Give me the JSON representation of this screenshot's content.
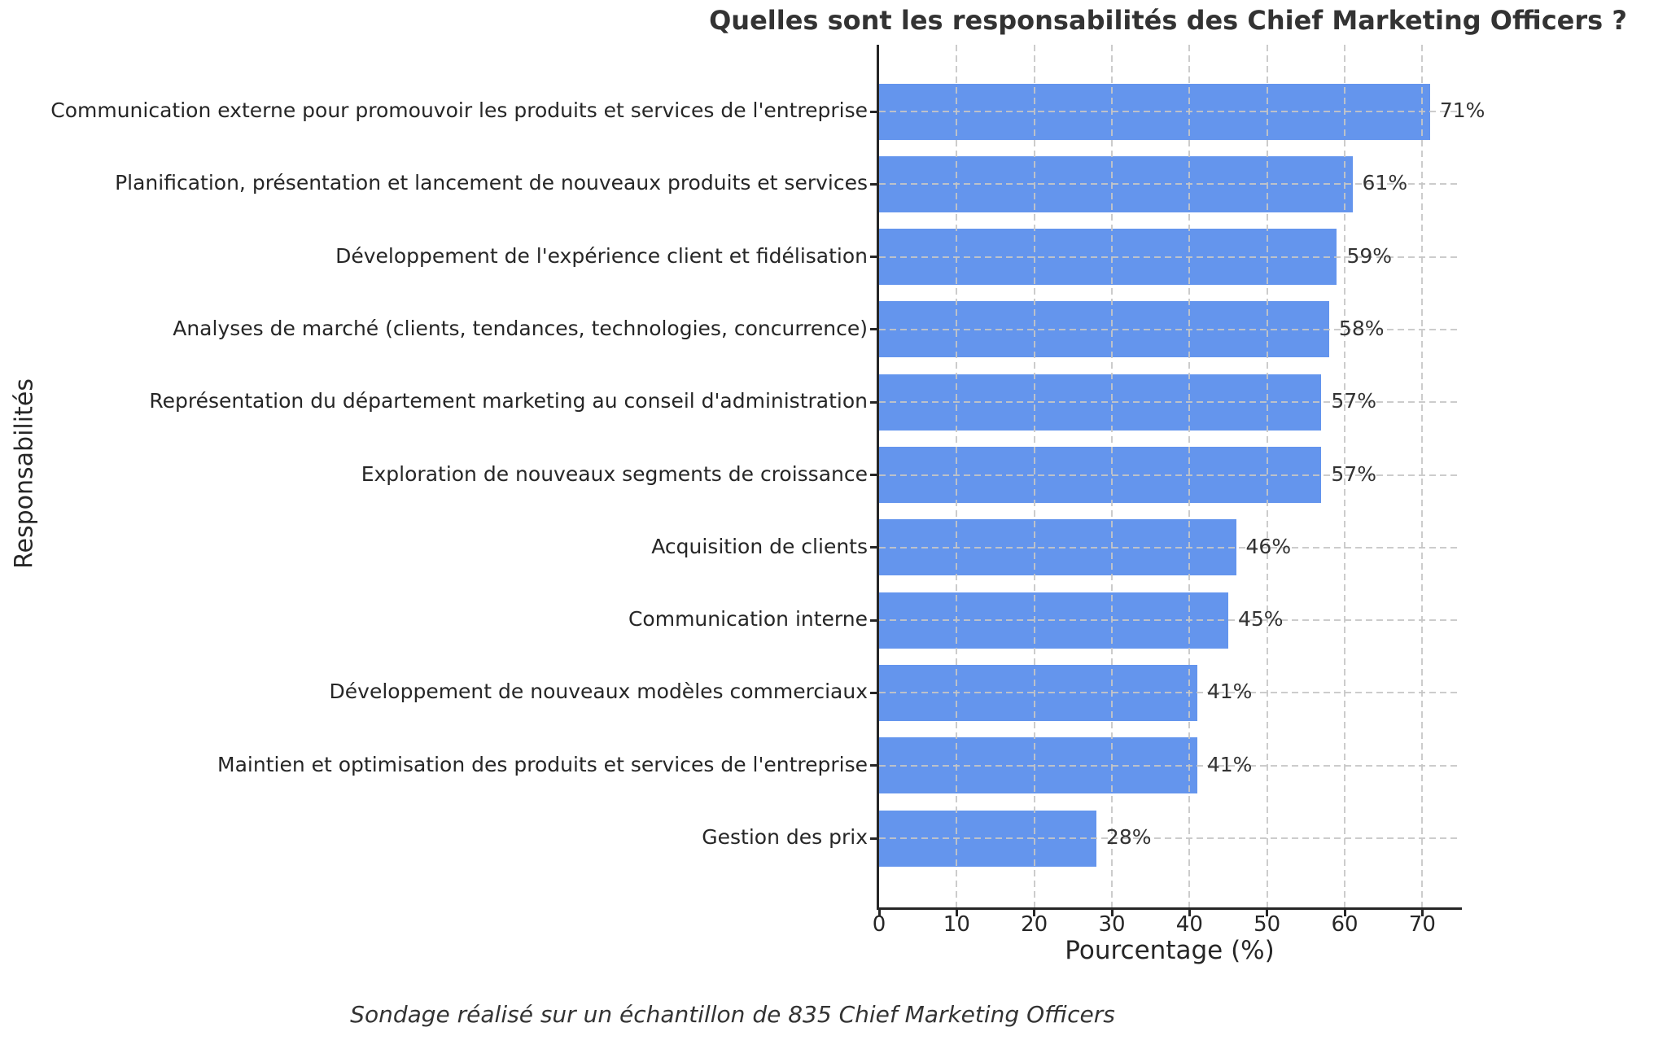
{
  "footnote": "Sondage réalisé sur un échantillon de 835 Chief Marketing Officers",
  "chart_data": {
    "type": "bar",
    "orientation": "horizontal",
    "title": "Quelles sont les responsabilités des Chief Marketing Officers ?",
    "xlabel": "Pourcentage (%)",
    "ylabel": "Responsabilités",
    "categories": [
      "Communication externe pour promouvoir les produits et services de l'entreprise",
      "Planification, présentation et lancement de nouveaux produits et services",
      "Développement de l'expérience client et fidélisation",
      "Analyses de marché (clients, tendances, technologies, concurrence)",
      "Représentation du département marketing au conseil d'administration",
      "Exploration de nouveaux segments de croissance",
      "Acquisition de clients",
      "Communication interne",
      "Développement de nouveaux modèles commerciaux",
      "Maintien et optimisation des produits et services de l'entreprise",
      "Gestion des prix"
    ],
    "values": [
      71,
      61,
      59,
      58,
      57,
      57,
      46,
      45,
      41,
      41,
      28
    ],
    "value_labels": [
      "71%",
      "61%",
      "59%",
      "58%",
      "57%",
      "57%",
      "46%",
      "45%",
      "41%",
      "41%",
      "28%"
    ],
    "xlim": [
      0,
      75
    ],
    "xticks": [
      0,
      10,
      20,
      30,
      40,
      50,
      60,
      70
    ],
    "grid": "dashed",
    "legend": "none",
    "bar_color": "#6495ED",
    "grid_color": "#c6c6c6",
    "spine_color": "#262626",
    "text_color": "#262626",
    "annotation": "Sondage réalisé sur un échantillon de 835 Chief Marketing Officers"
  }
}
